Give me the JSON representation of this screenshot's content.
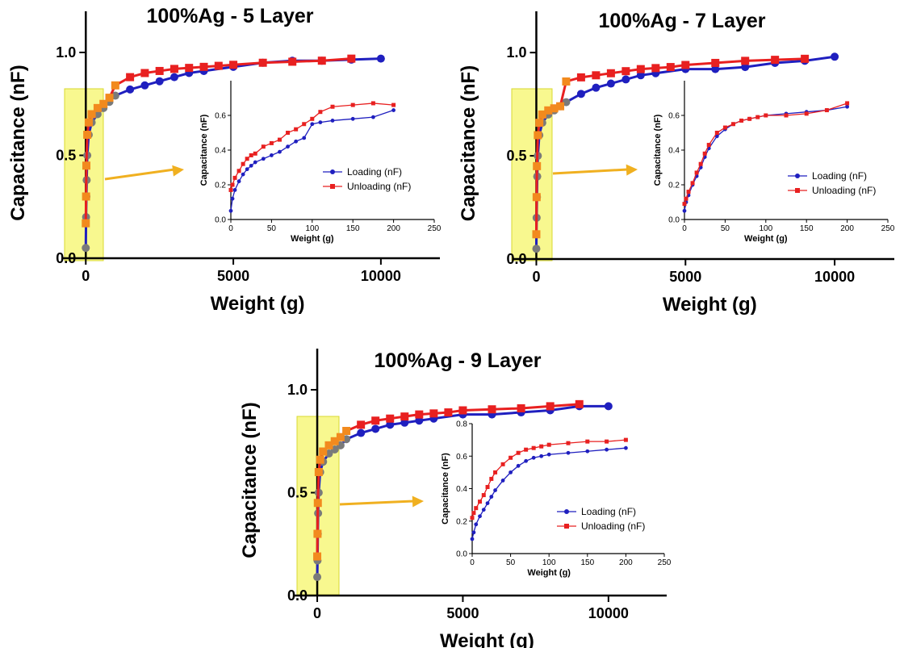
{
  "chart_data": [
    {
      "type": "line",
      "title": "100%Ag - 5 Layer",
      "xlabel": "Weight (g)",
      "ylabel": "Capacitance (nF)",
      "xlim": [
        -500,
        12000
      ],
      "ylim": [
        0,
        1.2
      ],
      "xticks": [
        "0",
        "5000",
        "10000"
      ],
      "yticks": [
        "0.0",
        "0.5",
        "1.0"
      ],
      "series": [
        {
          "name": "Loading (nF)",
          "color": "#1f1fbf",
          "x": [
            0,
            10,
            20,
            30,
            50,
            100,
            200,
            400,
            600,
            800,
            1000,
            1500,
            2000,
            2500,
            3000,
            3500,
            4000,
            5000,
            6000,
            7000,
            8000,
            9000,
            10000
          ],
          "y": [
            0.05,
            0.2,
            0.3,
            0.38,
            0.5,
            0.6,
            0.66,
            0.7,
            0.73,
            0.76,
            0.79,
            0.82,
            0.84,
            0.86,
            0.88,
            0.9,
            0.91,
            0.93,
            0.95,
            0.96,
            0.96,
            0.965,
            0.97
          ]
        },
        {
          "name": "Unloading (nF)",
          "color": "#e82020",
          "x": [
            0,
            10,
            20,
            50,
            100,
            200,
            400,
            600,
            800,
            1000,
            1500,
            2000,
            2500,
            3000,
            3500,
            4000,
            4500,
            5000,
            6000,
            7000,
            8000,
            9000
          ],
          "y": [
            0.17,
            0.3,
            0.45,
            0.6,
            0.66,
            0.7,
            0.73,
            0.75,
            0.78,
            0.84,
            0.88,
            0.9,
            0.91,
            0.92,
            0.925,
            0.93,
            0.935,
            0.94,
            0.95,
            0.955,
            0.96,
            0.97
          ]
        }
      ],
      "inset": {
        "xlabel": "Weight (g)",
        "ylabel": "Capacitance (nF)",
        "xlim": [
          0,
          250
        ],
        "ylim": [
          0,
          0.8
        ],
        "xticks": [
          "0",
          "50",
          "100",
          "150",
          "200",
          "250"
        ],
        "yticks": [
          "0.0",
          "0.2",
          "0.4",
          "0.6"
        ],
        "legend_position": "lower-right",
        "series": [
          {
            "name": "Loading (nF)",
            "color": "#1f1fbf",
            "x": [
              0,
              2,
              5,
              10,
              15,
              20,
              25,
              30,
              40,
              50,
              60,
              70,
              80,
              90,
              100,
              110,
              125,
              150,
              175,
              200
            ],
            "y": [
              0.05,
              0.12,
              0.17,
              0.22,
              0.26,
              0.29,
              0.31,
              0.33,
              0.35,
              0.37,
              0.39,
              0.42,
              0.45,
              0.47,
              0.55,
              0.56,
              0.57,
              0.58,
              0.59,
              0.63
            ]
          },
          {
            "name": "Unloading (nF)",
            "color": "#e82020",
            "x": [
              0,
              2,
              5,
              10,
              15,
              20,
              25,
              30,
              40,
              50,
              60,
              70,
              80,
              90,
              100,
              110,
              125,
              150,
              175,
              200
            ],
            "y": [
              0.17,
              0.2,
              0.24,
              0.28,
              0.32,
              0.35,
              0.37,
              0.38,
              0.42,
              0.44,
              0.46,
              0.5,
              0.52,
              0.55,
              0.58,
              0.62,
              0.65,
              0.66,
              0.67,
              0.66
            ]
          }
        ]
      }
    },
    {
      "type": "line",
      "title": "100%Ag - 7 Layer",
      "xlabel": "Weight (g)",
      "ylabel": "Capacitance (nF)",
      "xlim": [
        -500,
        12000
      ],
      "ylim": [
        0,
        1.2
      ],
      "xticks": [
        "0",
        "5000",
        "10000"
      ],
      "yticks": [
        "0.0",
        "0.5",
        "1.0"
      ],
      "series": [
        {
          "name": "Loading (nF)",
          "color": "#1f1fbf",
          "x": [
            0,
            10,
            20,
            30,
            50,
            100,
            200,
            400,
            600,
            800,
            1000,
            1500,
            2000,
            2500,
            3000,
            3500,
            4000,
            5000,
            6000,
            7000,
            8000,
            9000,
            10000
          ],
          "y": [
            0.05,
            0.2,
            0.3,
            0.4,
            0.5,
            0.6,
            0.66,
            0.7,
            0.72,
            0.74,
            0.76,
            0.8,
            0.83,
            0.85,
            0.87,
            0.89,
            0.9,
            0.92,
            0.92,
            0.93,
            0.95,
            0.96,
            0.98
          ]
        },
        {
          "name": "Unloading (nF)",
          "color": "#e82020",
          "x": [
            0,
            10,
            20,
            50,
            100,
            200,
            400,
            600,
            800,
            1000,
            1500,
            2000,
            2500,
            3000,
            3500,
            4000,
            4500,
            5000,
            6000,
            7000,
            8000,
            9000
          ],
          "y": [
            0.12,
            0.3,
            0.45,
            0.6,
            0.66,
            0.7,
            0.72,
            0.73,
            0.74,
            0.86,
            0.88,
            0.89,
            0.9,
            0.91,
            0.92,
            0.925,
            0.93,
            0.94,
            0.95,
            0.96,
            0.965,
            0.97
          ]
        }
      ],
      "inset": {
        "xlabel": "Weight (g)",
        "ylabel": "Capacitance (nF)",
        "xlim": [
          0,
          250
        ],
        "ylim": [
          0,
          0.8
        ],
        "xticks": [
          "0",
          "50",
          "100",
          "150",
          "200",
          "250"
        ],
        "yticks": [
          "0.0",
          "0.2",
          "0.4",
          "0.6"
        ],
        "legend_position": "center-right",
        "series": [
          {
            "name": "Loading (nF)",
            "color": "#1f1fbf",
            "x": [
              0,
              2,
              5,
              10,
              15,
              20,
              25,
              30,
              40,
              50,
              60,
              70,
              80,
              90,
              100,
              125,
              150,
              175,
              200
            ],
            "y": [
              0.05,
              0.1,
              0.14,
              0.2,
              0.25,
              0.3,
              0.36,
              0.41,
              0.48,
              0.52,
              0.55,
              0.57,
              0.58,
              0.59,
              0.6,
              0.61,
              0.62,
              0.63,
              0.65
            ]
          },
          {
            "name": "Unloading (nF)",
            "color": "#e82020",
            "x": [
              0,
              2,
              5,
              10,
              15,
              20,
              25,
              30,
              40,
              50,
              60,
              70,
              80,
              90,
              100,
              125,
              150,
              175,
              200
            ],
            "y": [
              0.09,
              0.12,
              0.16,
              0.21,
              0.27,
              0.32,
              0.38,
              0.43,
              0.5,
              0.53,
              0.55,
              0.57,
              0.58,
              0.59,
              0.6,
              0.6,
              0.61,
              0.63,
              0.67
            ]
          }
        ]
      }
    },
    {
      "type": "line",
      "title": "100%Ag - 9 Layer",
      "xlabel": "Weight (g)",
      "ylabel": "Capacitance (nF)",
      "xlim": [
        -500,
        12000
      ],
      "ylim": [
        0,
        1.2
      ],
      "xticks": [
        "0",
        "5000",
        "10000"
      ],
      "yticks": [
        "0.0",
        "0.5",
        "1.0"
      ],
      "series": [
        {
          "name": "Loading (nF)",
          "color": "#1f1fbf",
          "x": [
            0,
            10,
            20,
            30,
            50,
            100,
            200,
            400,
            600,
            800,
            1000,
            1500,
            2000,
            2500,
            3000,
            3500,
            4000,
            5000,
            6000,
            7000,
            8000,
            9000,
            10000
          ],
          "y": [
            0.09,
            0.17,
            0.3,
            0.4,
            0.5,
            0.6,
            0.65,
            0.69,
            0.71,
            0.73,
            0.76,
            0.79,
            0.81,
            0.83,
            0.84,
            0.85,
            0.86,
            0.88,
            0.88,
            0.89,
            0.9,
            0.92,
            0.92
          ]
        },
        {
          "name": "Unloading (nF)",
          "color": "#e82020",
          "x": [
            0,
            10,
            20,
            50,
            100,
            200,
            400,
            600,
            800,
            1000,
            1500,
            2000,
            2500,
            3000,
            3500,
            4000,
            4500,
            5000,
            6000,
            7000,
            8000,
            9000
          ],
          "y": [
            0.19,
            0.3,
            0.45,
            0.6,
            0.66,
            0.7,
            0.73,
            0.75,
            0.77,
            0.8,
            0.83,
            0.85,
            0.86,
            0.87,
            0.88,
            0.885,
            0.89,
            0.9,
            0.905,
            0.91,
            0.92,
            0.93
          ]
        }
      ],
      "inset": {
        "xlabel": "Weight (g)",
        "ylabel": "Capacitance (nF)",
        "xlim": [
          0,
          250
        ],
        "ylim": [
          0,
          0.8
        ],
        "xticks": [
          "0",
          "50",
          "100",
          "150",
          "200",
          "250"
        ],
        "yticks": [
          "0.0",
          "0.2",
          "0.4",
          "0.6",
          "0.8"
        ],
        "legend_position": "lower-right",
        "series": [
          {
            "name": "Loading (nF)",
            "color": "#1f1fbf",
            "x": [
              0,
              2,
              5,
              10,
              15,
              20,
              25,
              30,
              40,
              50,
              60,
              70,
              80,
              90,
              100,
              125,
              150,
              175,
              200
            ],
            "y": [
              0.09,
              0.13,
              0.18,
              0.23,
              0.27,
              0.31,
              0.35,
              0.39,
              0.45,
              0.5,
              0.54,
              0.57,
              0.59,
              0.6,
              0.61,
              0.62,
              0.63,
              0.64,
              0.65
            ]
          },
          {
            "name": "Unloading (nF)",
            "color": "#e82020",
            "x": [
              0,
              2,
              5,
              10,
              15,
              20,
              25,
              30,
              40,
              50,
              60,
              70,
              80,
              90,
              100,
              125,
              150,
              175,
              200
            ],
            "y": [
              0.22,
              0.25,
              0.28,
              0.32,
              0.36,
              0.41,
              0.46,
              0.5,
              0.55,
              0.59,
              0.62,
              0.64,
              0.65,
              0.66,
              0.67,
              0.68,
              0.69,
              0.69,
              0.7
            ]
          }
        ]
      }
    }
  ]
}
